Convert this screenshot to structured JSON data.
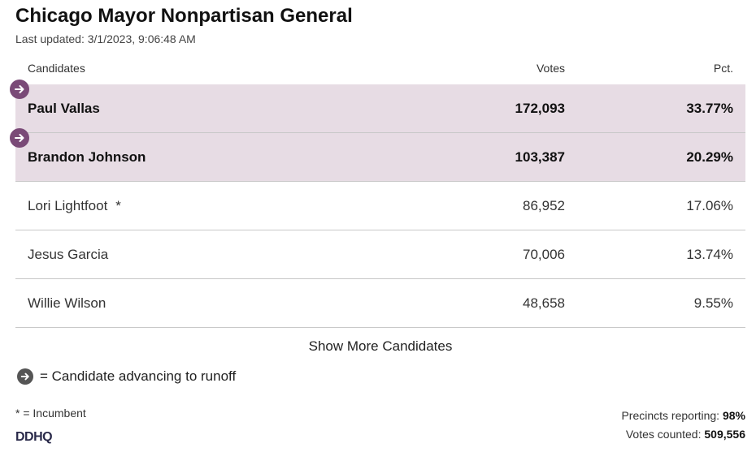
{
  "race": {
    "title": "Chicago Mayor Nonpartisan General",
    "last_updated": "Last updated: 3/1/2023, 9:06:48 AM"
  },
  "table": {
    "headers": {
      "candidates": "Candidates",
      "votes": "Votes",
      "pct": "Pct."
    },
    "rows": [
      {
        "name": "Paul Vallas",
        "votes": "172,093",
        "pct": "33.77%",
        "advancing": true,
        "incumbent": false
      },
      {
        "name": "Brandon Johnson",
        "votes": "103,387",
        "pct": "20.29%",
        "advancing": true,
        "incumbent": false
      },
      {
        "name": "Lori Lightfoot",
        "votes": "86,952",
        "pct": "17.06%",
        "advancing": false,
        "incumbent": true,
        "incumbent_mark": "*"
      },
      {
        "name": "Jesus Garcia",
        "votes": "70,006",
        "pct": "13.74%",
        "advancing": false,
        "incumbent": false
      },
      {
        "name": "Willie Wilson",
        "votes": "48,658",
        "pct": "9.55%",
        "advancing": false,
        "incumbent": false
      }
    ]
  },
  "show_more_label": "Show More Candidates",
  "legend": {
    "text": "= Candidate advancing to runoff",
    "icon": "arrow-right-circle-icon"
  },
  "incumbent_note": "* = Incumbent",
  "precincts": {
    "label": "Precincts reporting:",
    "value": "98%"
  },
  "votes_counted": {
    "label": "Votes counted:",
    "value": "509,556"
  },
  "logo": {
    "text": "DDHQ"
  },
  "colors": {
    "advancing_row_bg": "#e7dce4",
    "advancing_badge": "#7a4a77",
    "divider": "#c8c8c8"
  }
}
